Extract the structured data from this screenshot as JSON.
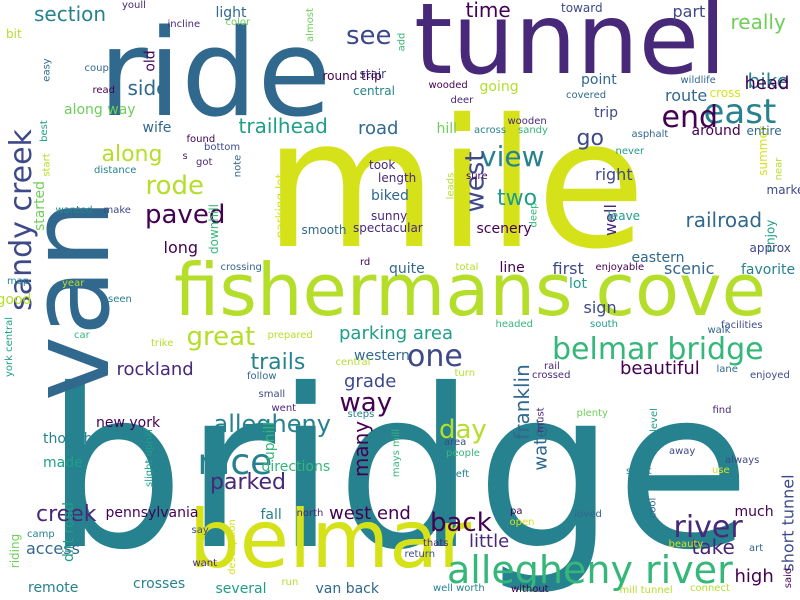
{
  "colors": {
    "background": "#ffffff",
    "palette": [
      "#440154",
      "#482878",
      "#3e4989",
      "#31688e",
      "#26828e",
      "#1f9e89",
      "#35b779",
      "#6ece58",
      "#b5de2b",
      "#d5e21a"
    ]
  },
  "words": [
    {
      "text": "bridge",
      "color": "#26828e",
      "vertical": false
    },
    {
      "text": "mile",
      "color": "#d5e21a",
      "vertical": false
    },
    {
      "text": "ride",
      "color": "#31688e",
      "vertical": false
    },
    {
      "text": "van",
      "color": "#31688e",
      "vertical": true
    },
    {
      "text": "tunnel",
      "color": "#482878",
      "vertical": false
    },
    {
      "text": "fishermans cove",
      "color": "#b5de2b",
      "vertical": false
    },
    {
      "text": "belmar",
      "color": "#d5e21a",
      "vertical": false
    },
    {
      "text": "allegheny river",
      "color": "#35b779",
      "vertical": false
    },
    {
      "text": "belmar bridge",
      "color": "#35b779",
      "vertical": false
    },
    {
      "text": "sandy creek",
      "color": "#3e4989",
      "vertical": true
    },
    {
      "text": "east",
      "color": "#26828e",
      "vertical": false
    },
    {
      "text": "end",
      "color": "#440154",
      "vertical": false
    },
    {
      "text": "nice",
      "color": "#26828e",
      "vertical": false
    },
    {
      "text": "river",
      "color": "#482878",
      "vertical": false
    },
    {
      "text": "one",
      "color": "#3e4989",
      "vertical": false
    },
    {
      "text": "paved",
      "color": "#440154",
      "vertical": false
    },
    {
      "text": "rode",
      "color": "#b5de2b",
      "vertical": false
    },
    {
      "text": "great",
      "color": "#b5de2b",
      "vertical": false
    },
    {
      "text": "allegheny",
      "color": "#26828e",
      "vertical": false
    },
    {
      "text": "view",
      "color": "#26828e",
      "vertical": false
    },
    {
      "text": "west",
      "color": "#3e4989",
      "vertical": true
    },
    {
      "text": "trailhead",
      "color": "#1f9e89",
      "vertical": false
    },
    {
      "text": "back",
      "color": "#440154",
      "vertical": false
    },
    {
      "text": "parked",
      "color": "#482878",
      "vertical": false
    },
    {
      "text": "way",
      "color": "#440154",
      "vertical": false
    },
    {
      "text": "trails",
      "color": "#26828e",
      "vertical": false
    },
    {
      "text": "see",
      "color": "#3e4989",
      "vertical": false
    },
    {
      "text": "along",
      "color": "#b5de2b",
      "vertical": false
    },
    {
      "text": "day",
      "color": "#b5de2b",
      "vertical": false
    },
    {
      "text": "creek",
      "color": "#482878",
      "vertical": false
    },
    {
      "text": "two",
      "color": "#1f9e89",
      "vertical": false
    },
    {
      "text": "section",
      "color": "#26828e",
      "vertical": false
    },
    {
      "text": "time",
      "color": "#440154",
      "vertical": false
    },
    {
      "text": "bike",
      "color": "#26828e",
      "vertical": false
    },
    {
      "text": "side",
      "color": "#31688e",
      "vertical": false
    },
    {
      "text": "railroad",
      "color": "#31688e",
      "vertical": false
    },
    {
      "text": "road",
      "color": "#31688e",
      "vertical": false
    },
    {
      "text": "go",
      "color": "#3e4989",
      "vertical": false
    },
    {
      "text": "many",
      "color": "#440154",
      "vertical": true
    },
    {
      "text": "franklin",
      "color": "#31688e",
      "vertical": true
    },
    {
      "text": "really",
      "color": "#6ece58",
      "vertical": false
    },
    {
      "text": "head",
      "color": "#440154",
      "vertical": false
    },
    {
      "text": "take",
      "color": "#482878",
      "vertical": false
    },
    {
      "text": "high",
      "color": "#440154",
      "vertical": false
    },
    {
      "text": "rockland",
      "color": "#482878",
      "vertical": false
    },
    {
      "text": "beautiful",
      "color": "#440154",
      "vertical": false
    },
    {
      "text": "little",
      "color": "#482878",
      "vertical": false
    },
    {
      "text": "parking area",
      "color": "#1f9e89",
      "vertical": false
    },
    {
      "text": "grade",
      "color": "#3e4989",
      "vertical": false
    },
    {
      "text": "water",
      "color": "#31688e",
      "vertical": true
    },
    {
      "text": "west end",
      "color": "#440154",
      "vertical": false
    },
    {
      "text": "access",
      "color": "#31688e",
      "vertical": false
    },
    {
      "text": "part",
      "color": "#3e4989",
      "vertical": false
    },
    {
      "text": "route",
      "color": "#31688e",
      "vertical": false
    },
    {
      "text": "long",
      "color": "#440154",
      "vertical": false
    },
    {
      "text": "scenic",
      "color": "#31688e",
      "vertical": false
    },
    {
      "text": "well",
      "color": "#482878",
      "vertical": true
    },
    {
      "text": "right",
      "color": "#3e4989",
      "vertical": false
    },
    {
      "text": "sign",
      "color": "#3e4989",
      "vertical": false
    },
    {
      "text": "first",
      "color": "#3e4989",
      "vertical": false
    },
    {
      "text": "lot",
      "color": "#1f9e89",
      "vertical": false
    },
    {
      "text": "short tunnel",
      "color": "#3e4989",
      "vertical": true
    },
    {
      "text": "pennsylvania",
      "color": "#440154",
      "vertical": false
    },
    {
      "text": "fall",
      "color": "#26828e",
      "vertical": false
    },
    {
      "text": "much",
      "color": "#440154",
      "vertical": false
    },
    {
      "text": "remote",
      "color": "#26828e",
      "vertical": false
    },
    {
      "text": "several",
      "color": "#1f9e89",
      "vertical": false
    },
    {
      "text": "van back",
      "color": "#31688e",
      "vertical": false
    },
    {
      "text": "crosses",
      "color": "#26828e",
      "vertical": false
    },
    {
      "text": "made",
      "color": "#1f9e89",
      "vertical": false
    },
    {
      "text": "though",
      "color": "#26828e",
      "vertical": false
    },
    {
      "text": "wife",
      "color": "#31688e",
      "vertical": false
    },
    {
      "text": "old",
      "color": "#440154",
      "vertical": true
    },
    {
      "text": "light",
      "color": "#31688e",
      "vertical": false
    },
    {
      "text": "toward",
      "color": "#3e4989",
      "vertical": false
    },
    {
      "text": "along way",
      "color": "#6ece58",
      "vertical": false
    },
    {
      "text": "hill",
      "color": "#6ece58",
      "vertical": false
    },
    {
      "text": "biked",
      "color": "#31688e",
      "vertical": false
    },
    {
      "text": "scenery",
      "color": "#440154",
      "vertical": false
    },
    {
      "text": "trip",
      "color": "#3e4989",
      "vertical": false
    },
    {
      "text": "going",
      "color": "#b5de2b",
      "vertical": false
    },
    {
      "text": "point",
      "color": "#31688e",
      "vertical": false
    },
    {
      "text": "eastern",
      "color": "#31688e",
      "vertical": false
    },
    {
      "text": "around",
      "color": "#440154",
      "vertical": false
    },
    {
      "text": "line",
      "color": "#440154",
      "vertical": false
    },
    {
      "text": "quite",
      "color": "#31688e",
      "vertical": false
    },
    {
      "text": "western",
      "color": "#31688e",
      "vertical": false
    },
    {
      "text": "new york",
      "color": "#440154",
      "vertical": false
    },
    {
      "text": "uphill",
      "color": "#35b779",
      "vertical": true
    },
    {
      "text": "directions",
      "color": "#35b779",
      "vertical": false
    },
    {
      "text": "good",
      "color": "#b5de2b",
      "vertical": false
    },
    {
      "text": "started",
      "color": "#6ece58",
      "vertical": true
    },
    {
      "text": "riding",
      "color": "#6ece58",
      "vertical": true
    },
    {
      "text": "dirt road",
      "color": "#1f9e89",
      "vertical": true
    },
    {
      "text": "favorite",
      "color": "#26828e",
      "vertical": false
    },
    {
      "text": "leave",
      "color": "#1f9e89",
      "vertical": false
    },
    {
      "text": "enjoy",
      "color": "#1f9e89",
      "vertical": true
    },
    {
      "text": "approx",
      "color": "#3e4989",
      "vertical": false
    },
    {
      "text": "marker",
      "color": "#3e4989",
      "vertical": false
    },
    {
      "text": "summer",
      "color": "#d5e21a",
      "vertical": true
    },
    {
      "text": "entire",
      "color": "#31688e",
      "vertical": false
    },
    {
      "text": "smooth",
      "color": "#31688e",
      "vertical": false
    },
    {
      "text": "parking lot",
      "color": "#d5e21a",
      "vertical": true
    },
    {
      "text": "downhill",
      "color": "#35b779",
      "vertical": true
    },
    {
      "text": "spectacular",
      "color": "#482878",
      "vertical": false
    },
    {
      "text": "sunny",
      "color": "#482878",
      "vertical": false
    },
    {
      "text": "took",
      "color": "#482878",
      "vertical": false
    },
    {
      "text": "length",
      "color": "#482878",
      "vertical": false
    },
    {
      "text": "central",
      "color": "#26828e",
      "vertical": false
    },
    {
      "text": "stair",
      "color": "#3e4989",
      "vertical": false
    },
    {
      "text": "round trip",
      "color": "#440154",
      "vertical": false
    },
    {
      "text": "incline",
      "color": "#482878",
      "vertical": false
    },
    {
      "text": "youll",
      "color": "#482878",
      "vertical": false
    },
    {
      "text": "color",
      "color": "#6ece58",
      "vertical": false
    },
    {
      "text": "almost",
      "color": "#6ece58",
      "vertical": true
    },
    {
      "text": "add",
      "color": "#35b779",
      "vertical": true
    },
    {
      "text": "couple",
      "color": "#31688e",
      "vertical": false
    },
    {
      "text": "read",
      "color": "#440154",
      "vertical": false
    },
    {
      "text": "bit",
      "color": "#b5de2b",
      "vertical": false
    },
    {
      "text": "easy",
      "color": "#31688e",
      "vertical": true
    },
    {
      "text": "wooded",
      "color": "#440154",
      "vertical": false
    },
    {
      "text": "deer",
      "color": "#482878",
      "vertical": false
    },
    {
      "text": "covered",
      "color": "#31688e",
      "vertical": false
    },
    {
      "text": "wildlife",
      "color": "#31688e",
      "vertical": false
    },
    {
      "text": "cross",
      "color": "#d5e21a",
      "vertical": false
    },
    {
      "text": "wooden",
      "color": "#482878",
      "vertical": false
    },
    {
      "text": "sandy",
      "color": "#35b779",
      "vertical": false
    },
    {
      "text": "asphalt",
      "color": "#31688e",
      "vertical": false
    },
    {
      "text": "never",
      "color": "#1f9e89",
      "vertical": false
    },
    {
      "text": "across",
      "color": "#26828e",
      "vertical": false
    },
    {
      "text": "found",
      "color": "#440154",
      "vertical": false
    },
    {
      "text": "bottom",
      "color": "#3e4989",
      "vertical": false
    },
    {
      "text": "got",
      "color": "#482878",
      "vertical": false
    },
    {
      "text": "distance",
      "color": "#26828e",
      "vertical": false
    },
    {
      "text": "s",
      "color": "#482878",
      "vertical": false
    },
    {
      "text": "start",
      "color": "#b5de2b",
      "vertical": true
    },
    {
      "text": "best",
      "color": "#1f9e89",
      "vertical": true
    },
    {
      "text": "note",
      "color": "#31688e",
      "vertical": true
    },
    {
      "text": "leads",
      "color": "#b5de2b",
      "vertical": true
    },
    {
      "text": "sure",
      "color": "#440154",
      "vertical": false
    },
    {
      "text": "deep",
      "color": "#35b779",
      "vertical": true
    },
    {
      "text": "near",
      "color": "#b5de2b",
      "vertical": true
    },
    {
      "text": "wanted",
      "color": "#26828e",
      "vertical": false
    },
    {
      "text": "make",
      "color": "#3e4989",
      "vertical": false
    },
    {
      "text": "crossing",
      "color": "#31688e",
      "vertical": false
    },
    {
      "text": "rd",
      "color": "#440154",
      "vertical": false
    },
    {
      "text": "total",
      "color": "#b5de2b",
      "vertical": false
    },
    {
      "text": "enjoyable",
      "color": "#440154",
      "vertical": false
    },
    {
      "text": "map",
      "color": "#26828e",
      "vertical": false
    },
    {
      "text": "year",
      "color": "#b5de2b",
      "vertical": false
    },
    {
      "text": "seen",
      "color": "#26828e",
      "vertical": false
    },
    {
      "text": "york central",
      "color": "#1f9e89",
      "vertical": true
    },
    {
      "text": "car",
      "color": "#35b779",
      "vertical": false
    },
    {
      "text": "trike",
      "color": "#b5de2b",
      "vertical": false
    },
    {
      "text": "prepared",
      "color": "#b5de2b",
      "vertical": false
    },
    {
      "text": "headed",
      "color": "#35b779",
      "vertical": false
    },
    {
      "text": "south",
      "color": "#1f9e89",
      "vertical": false
    },
    {
      "text": "walk",
      "color": "#31688e",
      "vertical": false
    },
    {
      "text": "facilities",
      "color": "#3e4989",
      "vertical": false
    },
    {
      "text": "follow",
      "color": "#31688e",
      "vertical": false
    },
    {
      "text": "small",
      "color": "#3e4989",
      "vertical": false
    },
    {
      "text": "went",
      "color": "#482878",
      "vertical": false
    },
    {
      "text": "steps",
      "color": "#26828e",
      "vertical": false
    },
    {
      "text": "central",
      "color": "#b5de2b",
      "vertical": false
    },
    {
      "text": "rail",
      "color": "#482878",
      "vertical": false
    },
    {
      "text": "crossed",
      "color": "#482878",
      "vertical": false
    },
    {
      "text": "lane",
      "color": "#31688e",
      "vertical": false
    },
    {
      "text": "enjoyed",
      "color": "#3e4989",
      "vertical": false
    },
    {
      "text": "turn",
      "color": "#b5de2b",
      "vertical": false
    },
    {
      "text": "find",
      "color": "#482878",
      "vertical": false
    },
    {
      "text": "plenty",
      "color": "#6ece58",
      "vertical": false
    },
    {
      "text": "level",
      "color": "#1f9e89",
      "vertical": true
    },
    {
      "text": "must",
      "color": "#482878",
      "vertical": true
    },
    {
      "text": "area",
      "color": "#3e4989",
      "vertical": false
    },
    {
      "text": "people",
      "color": "#35b779",
      "vertical": false
    },
    {
      "text": "mays mill",
      "color": "#35b779",
      "vertical": true
    },
    {
      "text": "slight uphill",
      "color": "#1f9e89",
      "vertical": true
    },
    {
      "text": "away",
      "color": "#3e4989",
      "vertical": false
    },
    {
      "text": "always",
      "color": "#3e4989",
      "vertical": false
    },
    {
      "text": "short",
      "color": "#26828e",
      "vertical": false
    },
    {
      "text": "use",
      "color": "#d5e21a",
      "vertical": false
    },
    {
      "text": "left",
      "color": "#26828e",
      "vertical": false
    },
    {
      "text": "north",
      "color": "#482878",
      "vertical": false
    },
    {
      "text": "say",
      "color": "#3e4989",
      "vertical": false
    },
    {
      "text": "description",
      "color": "#d5e21a",
      "vertical": true
    },
    {
      "text": "camp",
      "color": "#26828e",
      "vertical": false
    },
    {
      "text": "want",
      "color": "#482878",
      "vertical": false
    },
    {
      "text": "run",
      "color": "#b5de2b",
      "vertical": false
    },
    {
      "text": "well worth",
      "color": "#26828e",
      "vertical": false
    },
    {
      "text": "return",
      "color": "#3e4989",
      "vertical": false
    },
    {
      "text": "thats",
      "color": "#482878",
      "vertical": false
    },
    {
      "text": "pa",
      "color": "#440154",
      "vertical": false
    },
    {
      "text": "open",
      "color": "#d5e21a",
      "vertical": false
    },
    {
      "text": "without",
      "color": "#440154",
      "vertical": false
    },
    {
      "text": "loved",
      "color": "#31688e",
      "vertical": false
    },
    {
      "text": "cool",
      "color": "#31688e",
      "vertical": true
    },
    {
      "text": "beauty",
      "color": "#d5e21a",
      "vertical": false
    },
    {
      "text": "art",
      "color": "#31688e",
      "vertical": false
    },
    {
      "text": "mill tunnel",
      "color": "#b5de2b",
      "vertical": false
    },
    {
      "text": "connect",
      "color": "#b5de2b",
      "vertical": false
    },
    {
      "text": "said",
      "color": "#440154",
      "vertical": true
    }
  ]
}
